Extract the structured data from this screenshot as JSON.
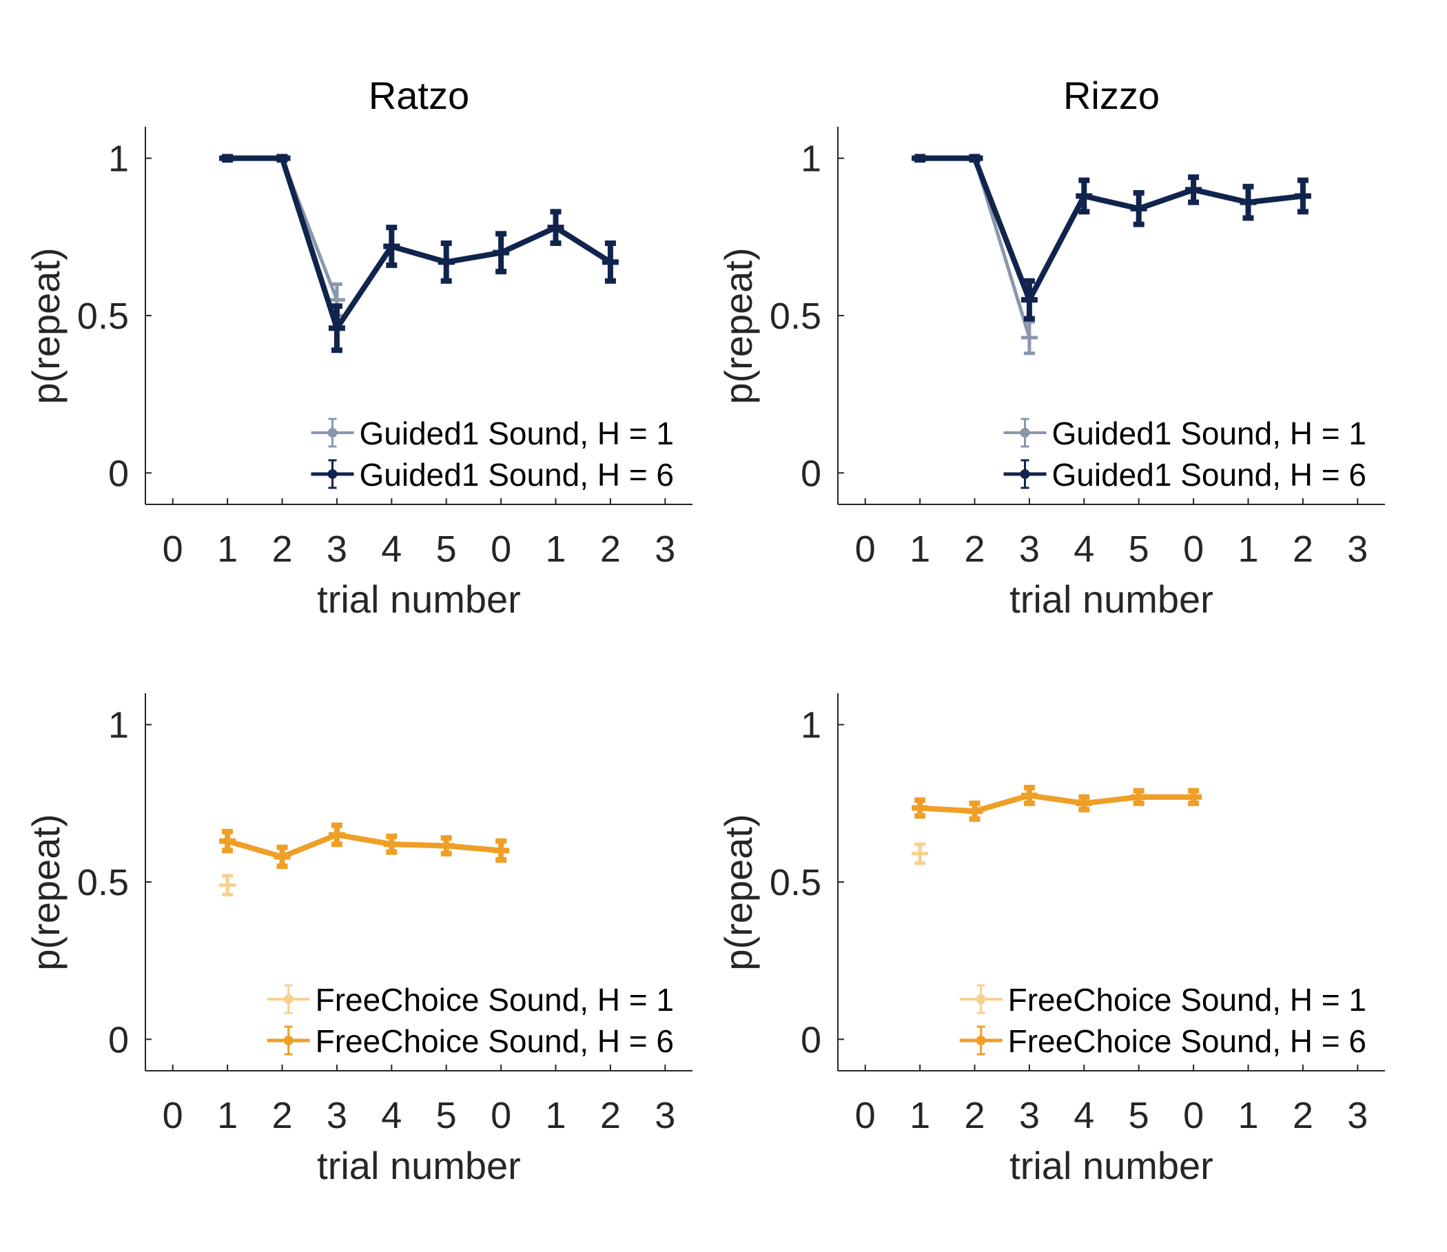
{
  "chart_data": [
    {
      "type": "line",
      "title": "Ratzo",
      "xlabel": "trial number",
      "ylabel": "p(repeat)",
      "ylim": [
        -0.1,
        1.1
      ],
      "yticks": [
        0,
        0.5,
        1
      ],
      "ytick_labels": [
        "0",
        "0.5",
        "1"
      ],
      "xtick_labels": [
        "0",
        "1",
        "2",
        "3",
        "4",
        "5",
        "0",
        "1",
        "2",
        "3"
      ],
      "grid": false,
      "legend_position": "bottom-right",
      "series": [
        {
          "name": "Guided1 Sound, H = 1",
          "color": "#8a96ad",
          "linewidth": 5,
          "x": [
            1,
            2,
            3
          ],
          "values": [
            1.0,
            1.0,
            0.55
          ],
          "errors": [
            0.005,
            0.005,
            0.05
          ]
        },
        {
          "name": "Guided1 Sound, H = 6",
          "color": "#11244d",
          "linewidth": 8,
          "x": [
            1,
            2,
            3,
            4,
            5,
            6,
            7,
            8
          ],
          "values": [
            1.0,
            1.0,
            0.46,
            0.72,
            0.67,
            0.7,
            0.78,
            0.67
          ],
          "errors": [
            0.005,
            0.005,
            0.07,
            0.06,
            0.06,
            0.06,
            0.05,
            0.06
          ]
        }
      ]
    },
    {
      "type": "line",
      "title": "Rizzo",
      "xlabel": "trial number",
      "ylabel": "p(repeat)",
      "ylim": [
        -0.1,
        1.1
      ],
      "yticks": [
        0,
        0.5,
        1
      ],
      "ytick_labels": [
        "0",
        "0.5",
        "1"
      ],
      "xtick_labels": [
        "0",
        "1",
        "2",
        "3",
        "4",
        "5",
        "0",
        "1",
        "2",
        "3"
      ],
      "grid": false,
      "legend_position": "bottom-right",
      "series": [
        {
          "name": "Guided1 Sound, H = 1",
          "color": "#8a96ad",
          "linewidth": 5,
          "x": [
            1,
            2,
            3
          ],
          "values": [
            1.0,
            1.0,
            0.43
          ],
          "errors": [
            0.005,
            0.005,
            0.05
          ]
        },
        {
          "name": "Guided1 Sound, H = 6",
          "color": "#11244d",
          "linewidth": 8,
          "x": [
            1,
            2,
            3,
            4,
            5,
            6,
            7,
            8
          ],
          "values": [
            1.0,
            1.0,
            0.55,
            0.88,
            0.84,
            0.9,
            0.86,
            0.88
          ],
          "errors": [
            0.005,
            0.005,
            0.06,
            0.05,
            0.05,
            0.04,
            0.05,
            0.05
          ]
        }
      ]
    },
    {
      "type": "line",
      "title": "",
      "xlabel": "trial number",
      "ylabel": "p(repeat)",
      "ylim": [
        -0.1,
        1.1
      ],
      "yticks": [
        0,
        0.5,
        1
      ],
      "ytick_labels": [
        "0",
        "0.5",
        "1"
      ],
      "xtick_labels": [
        "0",
        "1",
        "2",
        "3",
        "4",
        "5",
        "0",
        "1",
        "2",
        "3"
      ],
      "grid": false,
      "legend_position": "bottom-right",
      "series": [
        {
          "name": "FreeChoice Sound, H = 1",
          "color": "#f7d08f",
          "linewidth": 5,
          "x": [
            1
          ],
          "values": [
            0.49
          ],
          "errors": [
            0.03
          ]
        },
        {
          "name": "FreeChoice Sound, H = 6",
          "color": "#ef9f26",
          "linewidth": 8,
          "x": [
            1,
            2,
            3,
            4,
            5,
            6
          ],
          "values": [
            0.63,
            0.58,
            0.65,
            0.62,
            0.615,
            0.6
          ],
          "errors": [
            0.03,
            0.03,
            0.03,
            0.025,
            0.025,
            0.03
          ]
        }
      ]
    },
    {
      "type": "line",
      "title": "",
      "xlabel": "trial number",
      "ylabel": "p(repeat)",
      "ylim": [
        -0.1,
        1.1
      ],
      "yticks": [
        0,
        0.5,
        1
      ],
      "ytick_labels": [
        "0",
        "0.5",
        "1"
      ],
      "xtick_labels": [
        "0",
        "1",
        "2",
        "3",
        "4",
        "5",
        "0",
        "1",
        "2",
        "3"
      ],
      "grid": false,
      "legend_position": "bottom-right",
      "series": [
        {
          "name": "FreeChoice Sound, H = 1",
          "color": "#f7d08f",
          "linewidth": 5,
          "x": [
            1
          ],
          "values": [
            0.59
          ],
          "errors": [
            0.03
          ]
        },
        {
          "name": "FreeChoice Sound, H = 6",
          "color": "#ef9f26",
          "linewidth": 8,
          "x": [
            1,
            2,
            3,
            4,
            5,
            6
          ],
          "values": [
            0.735,
            0.725,
            0.775,
            0.75,
            0.77,
            0.77
          ],
          "errors": [
            0.025,
            0.025,
            0.025,
            0.02,
            0.02,
            0.02
          ]
        }
      ]
    }
  ]
}
